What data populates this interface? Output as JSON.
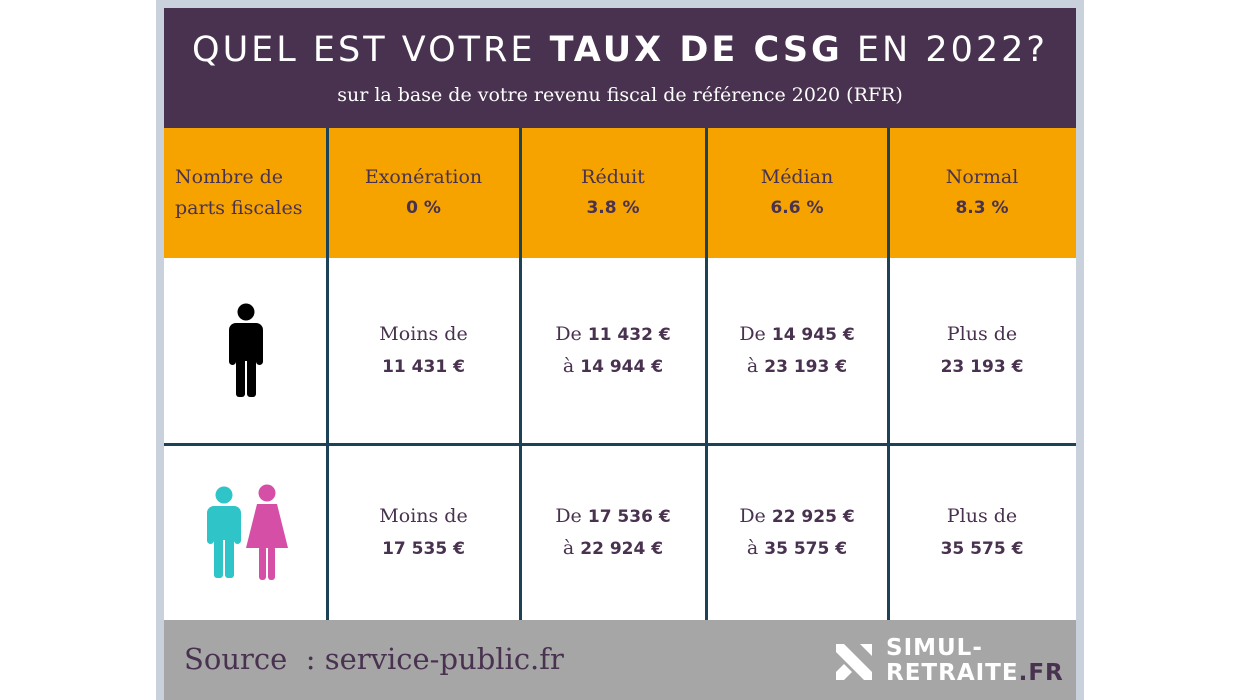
{
  "header": {
    "title_prefix": "QUEL EST VOTRE ",
    "title_bold": "TAUX DE CSG",
    "title_suffix": " EN 2022?",
    "subtitle": "sur la base de votre revenu fiscal de référence 2020 (RFR)"
  },
  "table": {
    "first_header": {
      "line1": "Nombre de",
      "line2": "parts fiscales"
    },
    "columns": [
      {
        "label": "Exonération",
        "rate": "0 %"
      },
      {
        "label": "Réduit",
        "rate": "3.8 %"
      },
      {
        "label": "Médian",
        "rate": "6.6 %"
      },
      {
        "label": "Normal",
        "rate": "8.3 %"
      }
    ],
    "rows": [
      {
        "icon": "single-person-icon",
        "cells": [
          {
            "p1": "Moins de",
            "v1": "",
            "p2": "",
            "v2": "11 431 €"
          },
          {
            "p1": "De ",
            "v1": "11 432 €",
            "p2": "à ",
            "v2": "14 944 €"
          },
          {
            "p1": "De ",
            "v1": "14 945 €",
            "p2": "à ",
            "v2": "23 193 €"
          },
          {
            "p1": "Plus de",
            "v1": "",
            "p2": "",
            "v2": "23 193 €"
          }
        ]
      },
      {
        "icon": "couple-icon",
        "cells": [
          {
            "p1": "Moins de",
            "v1": "",
            "p2": "",
            "v2": "17 535 €"
          },
          {
            "p1": "De ",
            "v1": "17 536 €",
            "p2": "à ",
            "v2": "22 924 €"
          },
          {
            "p1": "De ",
            "v1": "22 925 €",
            "p2": "à ",
            "v2": "35 575 €"
          },
          {
            "p1": "Plus de",
            "v1": "",
            "p2": "",
            "v2": "35 575 €"
          }
        ]
      }
    ]
  },
  "footer": {
    "source": "Source  : service-public.fr",
    "logo_line1": "SIMUL-",
    "logo_line2_main": "RETRAITE",
    "logo_line2_accent": ".FR"
  },
  "colors": {
    "header_bg": "#48324f",
    "accent_orange": "#f6a300",
    "grid_lines": "#1c4257",
    "footer_bg": "#a6a6a6",
    "man_color": "#2ec4c8",
    "woman_color": "#d64fa6"
  }
}
